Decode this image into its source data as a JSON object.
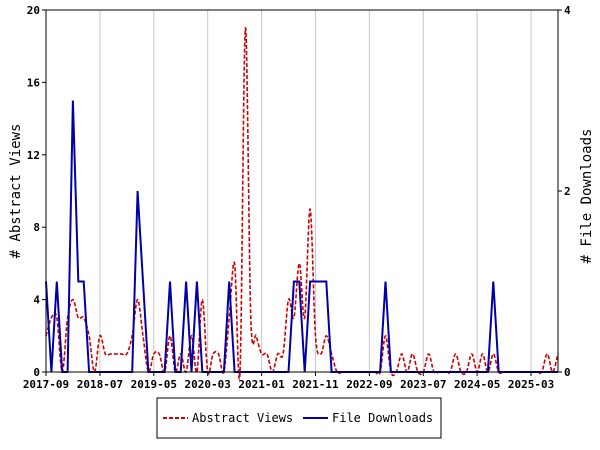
{
  "chart_data": {
    "type": "line",
    "xlabel": "",
    "ylabel": "# Abstract Views",
    "y2label": "# File Downloads",
    "ylim": [
      0,
      20
    ],
    "y2lim": [
      0,
      4
    ],
    "yticks": [
      "0",
      "4",
      "8",
      "12",
      "16",
      "20"
    ],
    "y2ticks": [
      "0",
      "2",
      "4"
    ],
    "xticks": [
      "2017-09",
      "2018-07",
      "2019-05",
      "2020-03",
      "2021-01",
      "2021-11",
      "2022-09",
      "2023-07",
      "2024-05",
      "2025-03"
    ],
    "x_start": "2017-09",
    "x_end": "2025-08",
    "grid": "vertical",
    "legend": "bottom-center",
    "colors": {
      "abstract_views": "#cc0000",
      "file_downloads": "#0000aa"
    },
    "series": [
      {
        "name": "Abstract Views",
        "axis": "left",
        "style": "dashed",
        "x": [
          "2017-09",
          "2017-10",
          "2017-11",
          "2017-12",
          "2018-01",
          "2018-02",
          "2018-03",
          "2018-04",
          "2018-05",
          "2018-06",
          "2018-07",
          "2018-08",
          "2018-09",
          "2018-10",
          "2018-11",
          "2018-12",
          "2019-01",
          "2019-02",
          "2019-03",
          "2019-04",
          "2019-05",
          "2019-06",
          "2019-07",
          "2019-08",
          "2019-09",
          "2019-10",
          "2019-11",
          "2019-12",
          "2020-01",
          "2020-02",
          "2020-03",
          "2020-04",
          "2020-05",
          "2020-06",
          "2020-07",
          "2020-08",
          "2020-09",
          "2020-10",
          "2020-11",
          "2020-12",
          "2021-01",
          "2021-02",
          "2021-03",
          "2021-04",
          "2021-05",
          "2021-06",
          "2021-07",
          "2021-08",
          "2021-09",
          "2021-10",
          "2021-11",
          "2021-12",
          "2022-01",
          "2022-02",
          "2022-03",
          "2022-04",
          "2022-05",
          "2022-06",
          "2022-07",
          "2022-08",
          "2022-09",
          "2022-10",
          "2022-11",
          "2022-12",
          "2023-01",
          "2023-02",
          "2023-03",
          "2023-04",
          "2023-05",
          "2023-06",
          "2023-07",
          "2023-08",
          "2023-09",
          "2023-10",
          "2023-11",
          "2023-12",
          "2024-01",
          "2024-02",
          "2024-03",
          "2024-04",
          "2024-05",
          "2024-06",
          "2024-07",
          "2024-08",
          "2024-09",
          "2024-10",
          "2024-11",
          "2024-12",
          "2025-01",
          "2025-02",
          "2025-03",
          "2025-04",
          "2025-05",
          "2025-06",
          "2025-07",
          "2025-08"
        ],
        "y": [
          2,
          3,
          3,
          0,
          3,
          4,
          3,
          3,
          2,
          0,
          2,
          1,
          1,
          1,
          1,
          1,
          2,
          4,
          2,
          0,
          1,
          1,
          0,
          2,
          0,
          1,
          0,
          2,
          0,
          4,
          0,
          1,
          1,
          0,
          3,
          6,
          0,
          19,
          3,
          2,
          1,
          1,
          0,
          1,
          1,
          4,
          3,
          6,
          3,
          9,
          2,
          1,
          2,
          1,
          0,
          0,
          0,
          0,
          0,
          0,
          0,
          0,
          0,
          2,
          0,
          0,
          1,
          0,
          1,
          0,
          0,
          1,
          0,
          0,
          0,
          0,
          1,
          0,
          0,
          1,
          0,
          1,
          0,
          1,
          0,
          0,
          0,
          0,
          0,
          0,
          0,
          0,
          0,
          1,
          0,
          1
        ]
      },
      {
        "name": "File Downloads",
        "axis": "right",
        "style": "solid",
        "x": [
          "2017-09",
          "2017-10",
          "2017-11",
          "2017-12",
          "2018-01",
          "2018-02",
          "2018-03",
          "2018-04",
          "2018-05",
          "2018-06",
          "2018-07",
          "2018-08",
          "2018-09",
          "2018-10",
          "2018-11",
          "2018-12",
          "2019-01",
          "2019-02",
          "2019-03",
          "2019-04",
          "2019-05",
          "2019-06",
          "2019-07",
          "2019-08",
          "2019-09",
          "2019-10",
          "2019-11",
          "2019-12",
          "2020-01",
          "2020-02",
          "2020-03",
          "2020-04",
          "2020-05",
          "2020-06",
          "2020-07",
          "2020-08",
          "2020-09",
          "2020-10",
          "2020-11",
          "2020-12",
          "2021-01",
          "2021-02",
          "2021-03",
          "2021-04",
          "2021-05",
          "2021-06",
          "2021-07",
          "2021-08",
          "2021-09",
          "2021-10",
          "2021-11",
          "2021-12",
          "2022-01",
          "2022-02",
          "2022-03",
          "2022-04",
          "2022-05",
          "2022-06",
          "2022-07",
          "2022-08",
          "2022-09",
          "2022-10",
          "2022-11",
          "2022-12",
          "2023-01",
          "2023-02",
          "2023-03",
          "2023-04",
          "2023-05",
          "2023-06",
          "2023-07",
          "2023-08",
          "2023-09",
          "2023-10",
          "2023-11",
          "2023-12",
          "2024-01",
          "2024-02",
          "2024-03",
          "2024-04",
          "2024-05",
          "2024-06",
          "2024-07",
          "2024-08",
          "2024-09",
          "2024-10",
          "2024-11",
          "2024-12",
          "2025-01",
          "2025-02",
          "2025-03",
          "2025-04",
          "2025-05",
          "2025-06",
          "2025-07",
          "2025-08"
        ],
        "y": [
          1,
          0,
          1,
          0,
          0,
          3,
          1,
          1,
          0,
          0,
          0,
          0,
          0,
          0,
          0,
          0,
          0,
          2,
          1,
          0,
          0,
          0,
          0,
          1,
          0,
          0,
          1,
          0,
          1,
          0,
          0,
          0,
          0,
          0,
          1,
          0,
          0,
          0,
          0,
          0,
          0,
          0,
          0,
          0,
          0,
          0,
          1,
          1,
          0,
          1,
          1,
          1,
          1,
          0,
          0,
          0,
          0,
          0,
          0,
          0,
          0,
          0,
          0,
          1,
          0,
          0,
          0,
          0,
          0,
          0,
          0,
          0,
          0,
          0,
          0,
          0,
          0,
          0,
          0,
          0,
          0,
          0,
          0,
          1,
          0,
          0,
          0,
          0,
          0,
          0,
          0,
          0,
          0,
          0,
          0,
          0
        ]
      }
    ]
  }
}
